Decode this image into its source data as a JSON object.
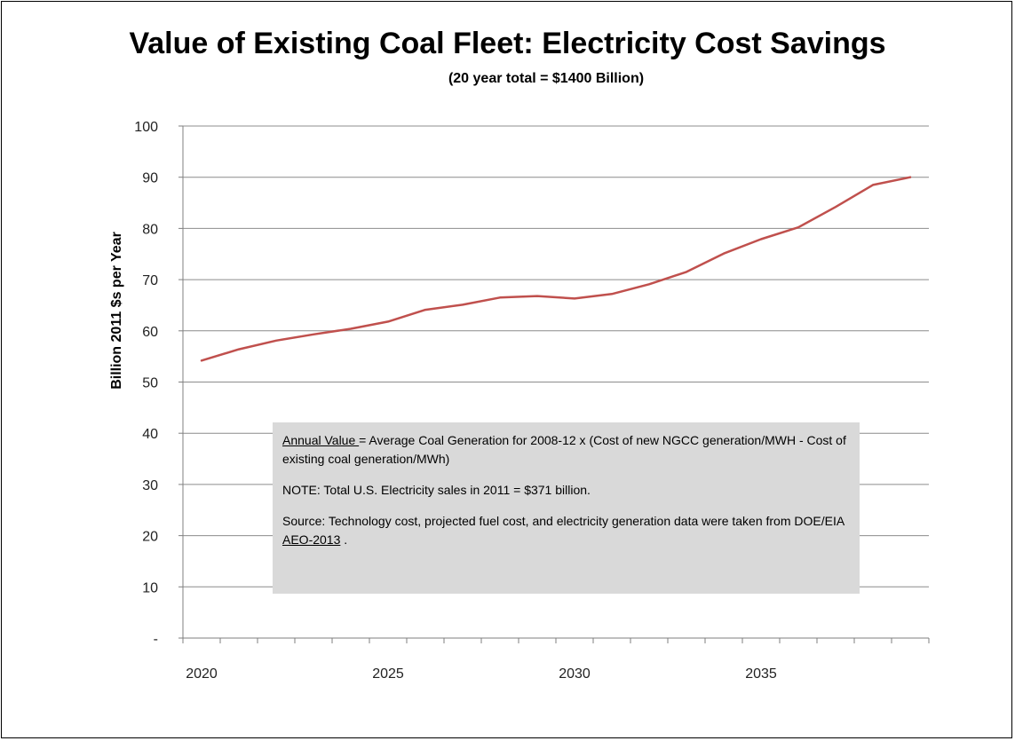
{
  "header": {
    "title": "Value of Existing Coal Fleet:  Electricity Cost Savings",
    "subtitle": "(20 year total = $1400 Billion)"
  },
  "note": {
    "annual_value_term": "Annual Value ",
    "annual_value_text": "= Average Coal Generation for 2008-12 x (Cost of new NGCC generation/MWH - Cost of existing coal generation/MWh)",
    "note_text": "NOTE:  Total U.S. Electricity sales in 2011 = $371 billion.",
    "source_text_pre": "Source:  Technology cost, projected fuel cost, and electricity generation data were taken from DOE/EIA ",
    "source_link": "AEO-2013",
    "source_text_post": " ."
  },
  "chart_data": {
    "type": "line",
    "title": "Value of Existing Coal Fleet:  Electricity Cost Savings",
    "subtitle": "(20 year total = $1400 Billion)",
    "xlabel": "",
    "ylabel": "Billion 2011 $s per Year",
    "x": [
      2020,
      2021,
      2022,
      2023,
      2024,
      2025,
      2026,
      2027,
      2028,
      2029,
      2030,
      2031,
      2032,
      2033,
      2034,
      2035,
      2036,
      2037,
      2038,
      2039
    ],
    "series": [
      {
        "values": [
          54.2,
          56.4,
          58.1,
          59.3,
          60.4,
          61.8,
          64.1,
          65.1,
          66.5,
          66.8,
          66.3,
          67.2,
          69.1,
          71.5,
          75.1,
          77.9,
          80.2,
          84.2,
          88.5,
          90.0
        ],
        "color": "#c0504d"
      }
    ],
    "xlim": [
      2019.5,
      2039.5
    ],
    "ylim": [
      0,
      100
    ],
    "y_ticks": [
      0,
      10,
      20,
      30,
      40,
      50,
      60,
      70,
      80,
      90,
      100
    ],
    "y_tick_labels": [
      "-",
      "10",
      "20",
      "30",
      "40",
      "50",
      "60",
      "70",
      "80",
      "90",
      "100"
    ],
    "x_tick_labels": [
      "2020",
      "2025",
      "2030",
      "2035"
    ],
    "x_tick_label_values": [
      2020,
      2025,
      2030,
      2035
    ],
    "grid": "horizontal",
    "legend": "none",
    "colors": {
      "line": "#c0504d",
      "grid": "#8c8c8c",
      "axis": "#7f7f7f",
      "note_background": "#d9d9d9"
    }
  }
}
